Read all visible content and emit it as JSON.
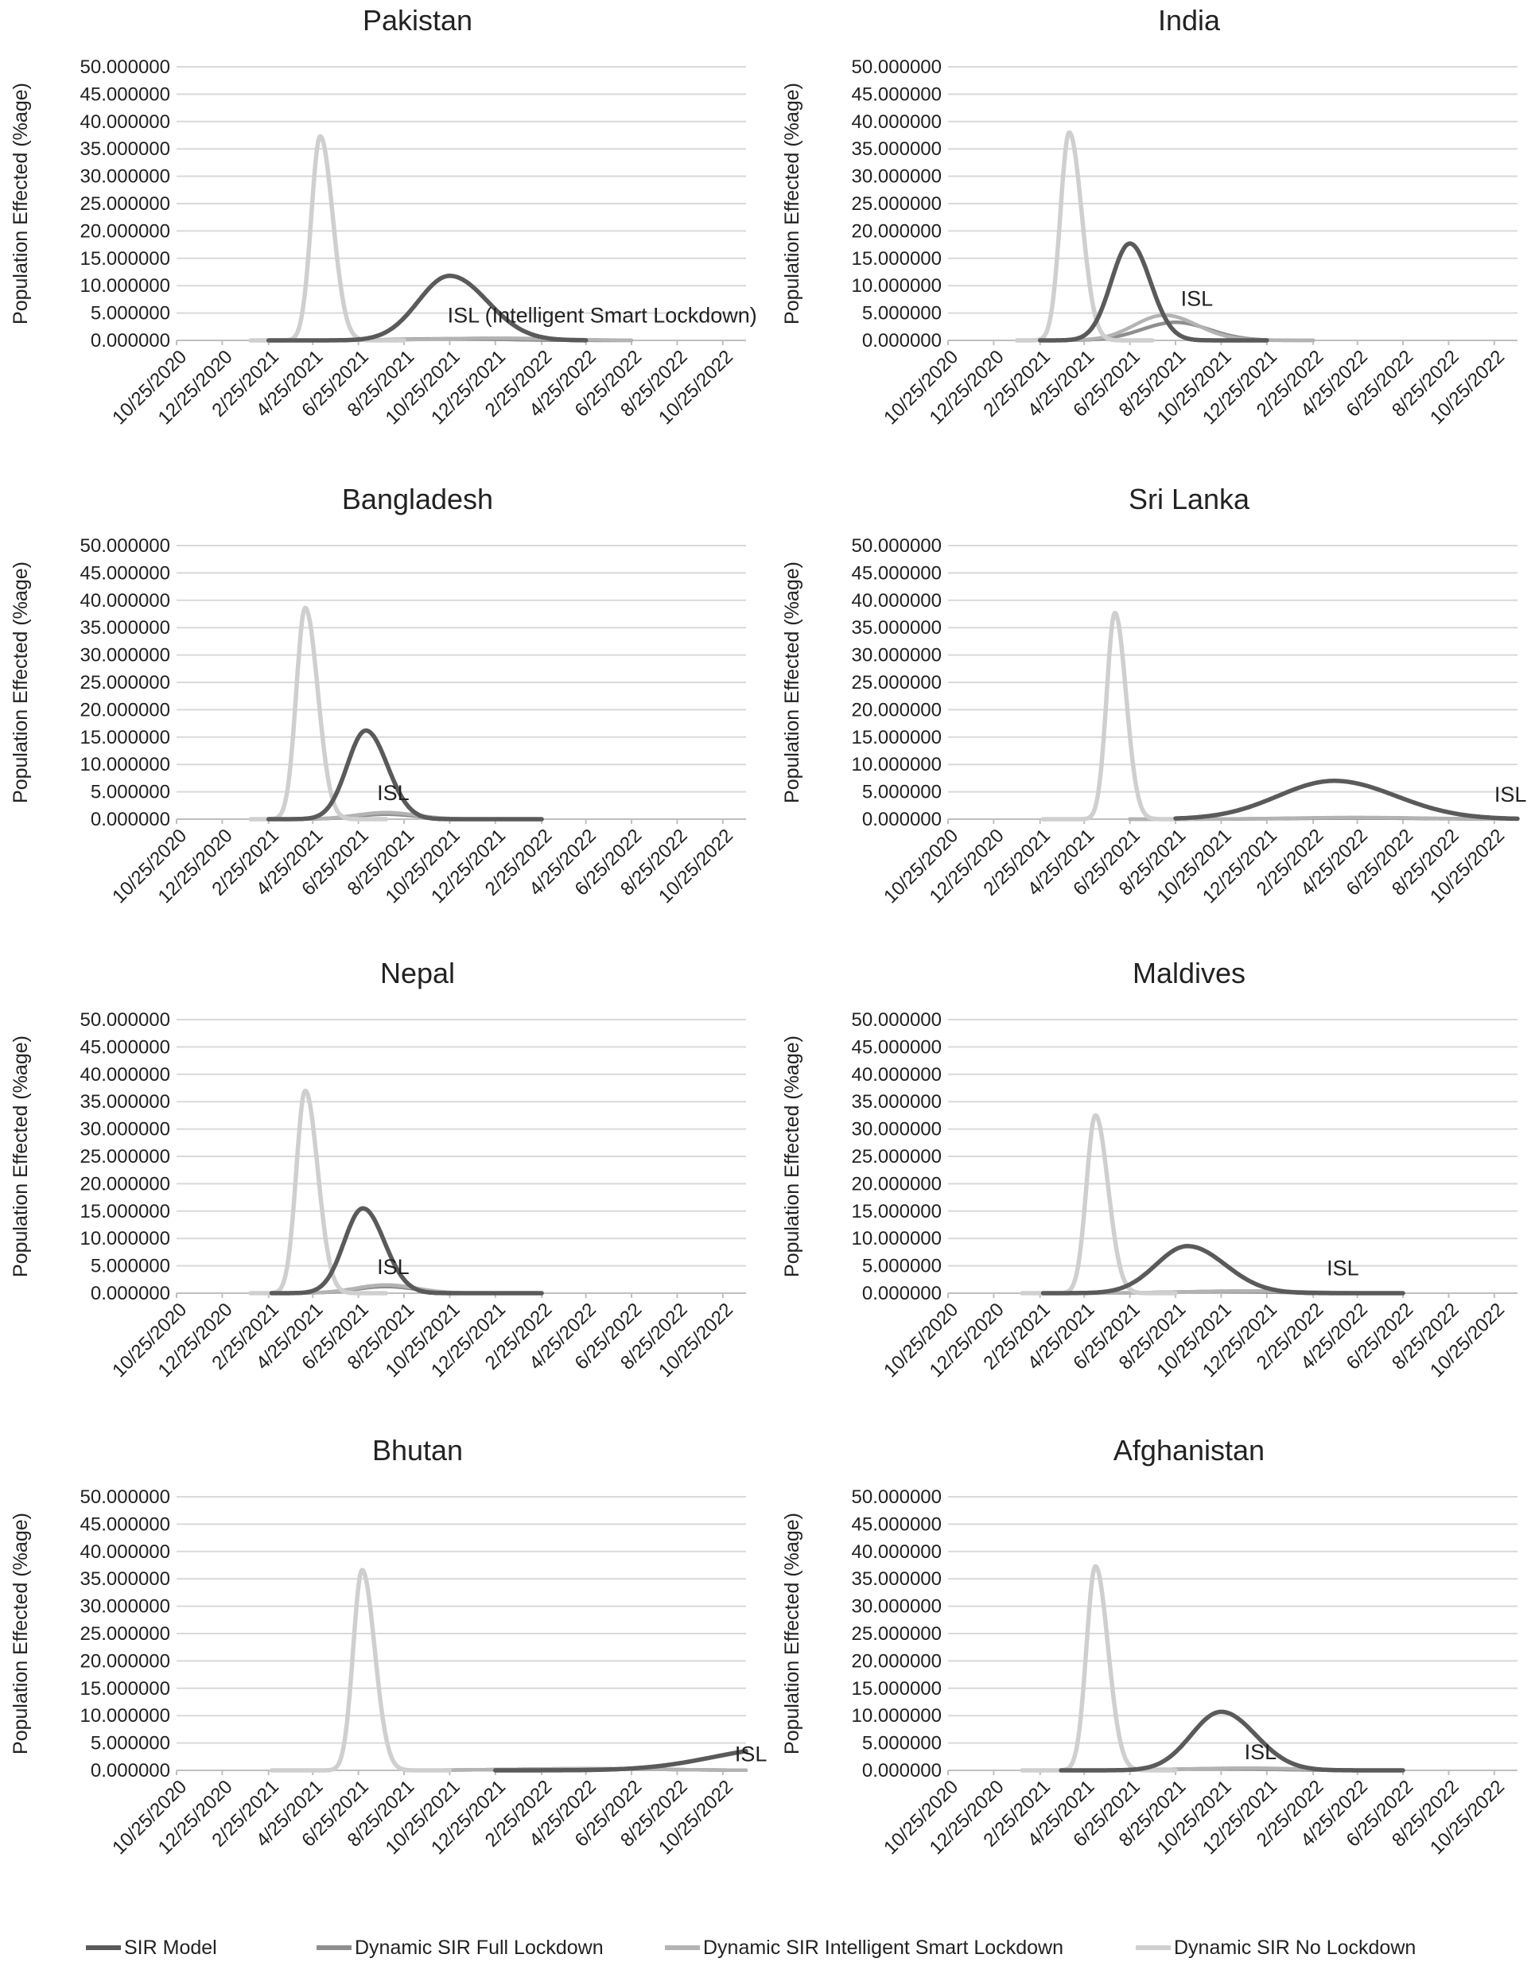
{
  "figure": {
    "ylabel": "Population  Effected  (%age)",
    "y_ticks": [
      "0.000000",
      "5.000000",
      "10.000000",
      "15.000000",
      "20.000000",
      "25.000000",
      "30.000000",
      "35.000000",
      "40.000000",
      "45.000000",
      "50.000000"
    ],
    "x_ticks": [
      "10/25/2020",
      "12/25/2020",
      "2/25/2021",
      "4/25/2021",
      "6/25/2021",
      "8/25/2021",
      "10/25/2021",
      "12/25/2021",
      "2/25/2022",
      "4/25/2022",
      "6/25/2022",
      "8/25/2022",
      "10/25/2022"
    ],
    "grid": "horizontal",
    "legend_position": "bottom",
    "colors": {
      "sir_model": "#5a5a5a",
      "full_lockdown": "#8e8e8e",
      "smart_lockdown": "#b3b3b3",
      "no_lockdown": "#cfcfcf",
      "grid": "#d9d9d9",
      "axis": "#bfbfbf"
    }
  },
  "legend": [
    {
      "label": "SIR Model",
      "color": "#5a5a5a"
    },
    {
      "label": "Dynamic SIR Full Lockdown",
      "color": "#8e8e8e"
    },
    {
      "label": "Dynamic SIR Intelligent Smart Lockdown",
      "color": "#b3b3b3"
    },
    {
      "label": "Dynamic SIR No Lockdown",
      "color": "#cfcfcf"
    }
  ],
  "chart_data": [
    {
      "type": "line",
      "title": "Pakistan",
      "ylabel": "Population  Effected  (%age)",
      "ylim": [
        0,
        50
      ],
      "x_range": [
        "10/25/2020",
        "11/25/2022"
      ],
      "annotation": {
        "text": "ISL (Intelligent Smart Lockdown)",
        "x": "10/22/2021",
        "y": 3.3
      },
      "series": [
        {
          "name": "SIR Model",
          "key": "sir_model",
          "peak_date": "10/25/2021",
          "peak": 11.8,
          "sigma_days": 42,
          "start": "2/25/2021",
          "end": "4/25/2022",
          "skew": 1.2
        },
        {
          "name": "Dynamic SIR Full Lockdown",
          "key": "full_lockdown",
          "peak_date": "10/25/2021",
          "peak": 0.3,
          "sigma_days": 70,
          "start": "2/25/2021",
          "end": "6/25/2022",
          "skew": 1.0
        },
        {
          "name": "Dynamic SIR Intelligent Smart Lockdown",
          "key": "smart_lockdown",
          "peak_date": "12/25/2021",
          "peak": 0.4,
          "sigma_days": 80,
          "start": "2/25/2021",
          "end": "6/25/2022",
          "skew": 1.0
        },
        {
          "name": "Dynamic SIR No Lockdown",
          "key": "no_lockdown",
          "peak_date": "5/5/2021",
          "peak": 37.3,
          "sigma_days": 12,
          "start": "2/1/2021",
          "end": "8/25/2021",
          "skew": 1.4
        }
      ]
    },
    {
      "type": "line",
      "title": "India",
      "ylabel": "Population  Effected  (%age)",
      "ylim": [
        0,
        50
      ],
      "x_range": [
        "10/25/2020",
        "11/25/2022"
      ],
      "annotation": {
        "text": "ISL",
        "x": "9/1/2021",
        "y": 6.3
      },
      "series": [
        {
          "name": "SIR Model",
          "key": "sir_model",
          "peak_date": "6/25/2021",
          "peak": 17.7,
          "sigma_days": 25,
          "start": "2/25/2021",
          "end": "12/25/2021",
          "skew": 1.1
        },
        {
          "name": "Dynamic SIR Full Lockdown",
          "key": "full_lockdown",
          "peak_date": "8/25/2021",
          "peak": 3.3,
          "sigma_days": 45,
          "start": "2/25/2021",
          "end": "2/25/2022",
          "skew": 1.0
        },
        {
          "name": "Dynamic SIR Intelligent Smart Lockdown",
          "key": "smart_lockdown",
          "peak_date": "8/10/2021",
          "peak": 4.6,
          "sigma_days": 40,
          "start": "2/25/2021",
          "end": "2/25/2022",
          "skew": 1.1
        },
        {
          "name": "Dynamic SIR No Lockdown",
          "key": "no_lockdown",
          "peak_date": "4/5/2021",
          "peak": 38.0,
          "sigma_days": 12,
          "start": "1/25/2021",
          "end": "7/25/2021",
          "skew": 1.4
        }
      ]
    },
    {
      "type": "line",
      "title": "Bangladesh",
      "ylabel": "Population  Effected  (%age)",
      "ylim": [
        0,
        50
      ],
      "x_range": [
        "10/25/2020",
        "11/25/2022"
      ],
      "annotation": {
        "text": "ISL",
        "x": "7/20/2021",
        "y": 3.5
      },
      "series": [
        {
          "name": "SIR Model",
          "key": "sir_model",
          "peak_date": "7/5/2021",
          "peak": 16.2,
          "sigma_days": 25,
          "start": "2/25/2021",
          "end": "2/25/2022",
          "skew": 1.15
        },
        {
          "name": "Dynamic SIR Full Lockdown",
          "key": "full_lockdown",
          "peak_date": "8/1/2021",
          "peak": 0.9,
          "sigma_days": 40,
          "start": "2/25/2021",
          "end": "12/25/2021",
          "skew": 1.0
        },
        {
          "name": "Dynamic SIR Intelligent Smart Lockdown",
          "key": "smart_lockdown",
          "peak_date": "8/1/2021",
          "peak": 1.2,
          "sigma_days": 40,
          "start": "2/25/2021",
          "end": "12/25/2021",
          "skew": 1.0
        },
        {
          "name": "Dynamic SIR No Lockdown",
          "key": "no_lockdown",
          "peak_date": "4/15/2021",
          "peak": 38.6,
          "sigma_days": 12,
          "start": "2/1/2021",
          "end": "8/1/2021",
          "skew": 1.4
        }
      ]
    },
    {
      "type": "line",
      "title": "Sri Lanka",
      "ylabel": "Population  Effected  (%age)",
      "ylim": [
        0,
        50
      ],
      "x_range": [
        "10/25/2020",
        "11/25/2022"
      ],
      "annotation": {
        "text": "ISL",
        "x": "10/25/2022",
        "y": 3.2
      },
      "series": [
        {
          "name": "SIR Model",
          "key": "sir_model",
          "peak_date": "3/25/2022",
          "peak": 7.0,
          "sigma_days": 75,
          "start": "8/25/2021",
          "end": "11/25/2022",
          "skew": 1.1
        },
        {
          "name": "Dynamic SIR Full Lockdown",
          "key": "full_lockdown",
          "peak_date": "4/25/2022",
          "peak": 0.2,
          "sigma_days": 90,
          "start": "6/25/2021",
          "end": "11/25/2022",
          "skew": 1.0
        },
        {
          "name": "Dynamic SIR Intelligent Smart Lockdown",
          "key": "smart_lockdown",
          "peak_date": "4/25/2022",
          "peak": 0.3,
          "sigma_days": 90,
          "start": "6/25/2021",
          "end": "11/25/2022",
          "skew": 1.0
        },
        {
          "name": "Dynamic SIR No Lockdown",
          "key": "no_lockdown",
          "peak_date": "6/5/2021",
          "peak": 37.7,
          "sigma_days": 11,
          "start": "3/1/2021",
          "end": "9/15/2021",
          "skew": 1.35
        }
      ]
    },
    {
      "type": "line",
      "title": "Nepal",
      "ylabel": "Population  Effected  (%age)",
      "ylim": [
        0,
        50
      ],
      "x_range": [
        "10/25/2020",
        "11/25/2022"
      ],
      "annotation": {
        "text": "ISL",
        "x": "7/20/2021",
        "y": 3.5
      },
      "series": [
        {
          "name": "SIR Model",
          "key": "sir_model",
          "peak_date": "7/1/2021",
          "peak": 15.5,
          "sigma_days": 25,
          "start": "3/1/2021",
          "end": "2/25/2022",
          "skew": 1.15
        },
        {
          "name": "Dynamic SIR Full Lockdown",
          "key": "full_lockdown",
          "peak_date": "8/1/2021",
          "peak": 1.2,
          "sigma_days": 40,
          "start": "2/25/2021",
          "end": "12/25/2021",
          "skew": 1.0
        },
        {
          "name": "Dynamic SIR Intelligent Smart Lockdown",
          "key": "smart_lockdown",
          "peak_date": "8/1/2021",
          "peak": 1.5,
          "sigma_days": 40,
          "start": "2/25/2021",
          "end": "12/25/2021",
          "skew": 1.0
        },
        {
          "name": "Dynamic SIR No Lockdown",
          "key": "no_lockdown",
          "peak_date": "4/15/2021",
          "peak": 37.0,
          "sigma_days": 12,
          "start": "2/1/2021",
          "end": "8/1/2021",
          "skew": 1.4
        }
      ]
    },
    {
      "type": "line",
      "title": "Maldives",
      "ylabel": "Population  Effected  (%age)",
      "ylim": [
        0,
        50
      ],
      "x_range": [
        "10/25/2020",
        "11/25/2022"
      ],
      "annotation": {
        "text": "ISL",
        "x": "3/15/2022",
        "y": 3.3
      },
      "series": [
        {
          "name": "SIR Model",
          "key": "sir_model",
          "peak_date": "9/10/2021",
          "peak": 8.6,
          "sigma_days": 42,
          "start": "3/1/2021",
          "end": "6/25/2022",
          "skew": 1.2
        },
        {
          "name": "Dynamic SIR Full Lockdown",
          "key": "full_lockdown",
          "peak_date": "10/25/2021",
          "peak": 0.3,
          "sigma_days": 70,
          "start": "3/1/2021",
          "end": "6/25/2022",
          "skew": 1.0
        },
        {
          "name": "Dynamic SIR Intelligent Smart Lockdown",
          "key": "smart_lockdown",
          "peak_date": "11/25/2021",
          "peak": 0.4,
          "sigma_days": 80,
          "start": "3/1/2021",
          "end": "6/25/2022",
          "skew": 1.0
        },
        {
          "name": "Dynamic SIR No Lockdown",
          "key": "no_lockdown",
          "peak_date": "5/10/2021",
          "peak": 32.5,
          "sigma_days": 12,
          "start": "2/1/2021",
          "end": "8/25/2021",
          "skew": 1.4
        }
      ]
    },
    {
      "type": "line",
      "title": "Bhutan",
      "ylabel": "Population  Effected  (%age)",
      "ylim": [
        0,
        50
      ],
      "x_range": [
        "10/25/2020",
        "11/25/2022"
      ],
      "annotation": {
        "text": "ISL",
        "x": "11/10/2022",
        "y": 1.7
      },
      "series": [
        {
          "name": "SIR Model",
          "key": "sir_model",
          "peak_date": "1/10/2023",
          "peak": 4.0,
          "sigma_days": 90,
          "start": "12/25/2021",
          "end": "11/25/2022",
          "skew": 1.0
        },
        {
          "name": "Dynamic SIR Full Lockdown",
          "key": "full_lockdown",
          "peak_date": "4/25/2022",
          "peak": 0.3,
          "sigma_days": 100,
          "start": "8/25/2021",
          "end": "11/25/2022",
          "skew": 1.0
        },
        {
          "name": "Dynamic SIR Intelligent Smart Lockdown",
          "key": "smart_lockdown",
          "peak_date": "4/25/2022",
          "peak": 0.3,
          "sigma_days": 100,
          "start": "8/25/2021",
          "end": "11/25/2022",
          "skew": 1.0
        },
        {
          "name": "Dynamic SIR No Lockdown",
          "key": "no_lockdown",
          "peak_date": "6/30/2021",
          "peak": 36.6,
          "sigma_days": 12,
          "start": "3/1/2021",
          "end": "10/25/2021",
          "skew": 1.4
        }
      ]
    },
    {
      "type": "line",
      "title": "Afghanistan",
      "ylabel": "Population  Effected  (%age)",
      "ylim": [
        0,
        50
      ],
      "x_range": [
        "10/25/2020",
        "11/25/2022"
      ],
      "annotation": {
        "text": "ISL",
        "x": "11/25/2021",
        "y": 2.0
      },
      "series": [
        {
          "name": "SIR Model",
          "key": "sir_model",
          "peak_date": "10/25/2021",
          "peak": 10.7,
          "sigma_days": 40,
          "start": "3/25/2021",
          "end": "6/25/2022",
          "skew": 1.15
        },
        {
          "name": "Dynamic SIR Full Lockdown",
          "key": "full_lockdown",
          "peak_date": "10/25/2021",
          "peak": 0.3,
          "sigma_days": 70,
          "start": "3/25/2021",
          "end": "6/25/2022",
          "skew": 1.0
        },
        {
          "name": "Dynamic SIR Intelligent Smart Lockdown",
          "key": "smart_lockdown",
          "peak_date": "11/25/2021",
          "peak": 0.4,
          "sigma_days": 80,
          "start": "3/25/2021",
          "end": "6/25/2022",
          "skew": 1.0
        },
        {
          "name": "Dynamic SIR No Lockdown",
          "key": "no_lockdown",
          "peak_date": "5/10/2021",
          "peak": 37.3,
          "sigma_days": 12,
          "start": "2/1/2021",
          "end": "8/25/2021",
          "skew": 1.4
        }
      ]
    }
  ]
}
